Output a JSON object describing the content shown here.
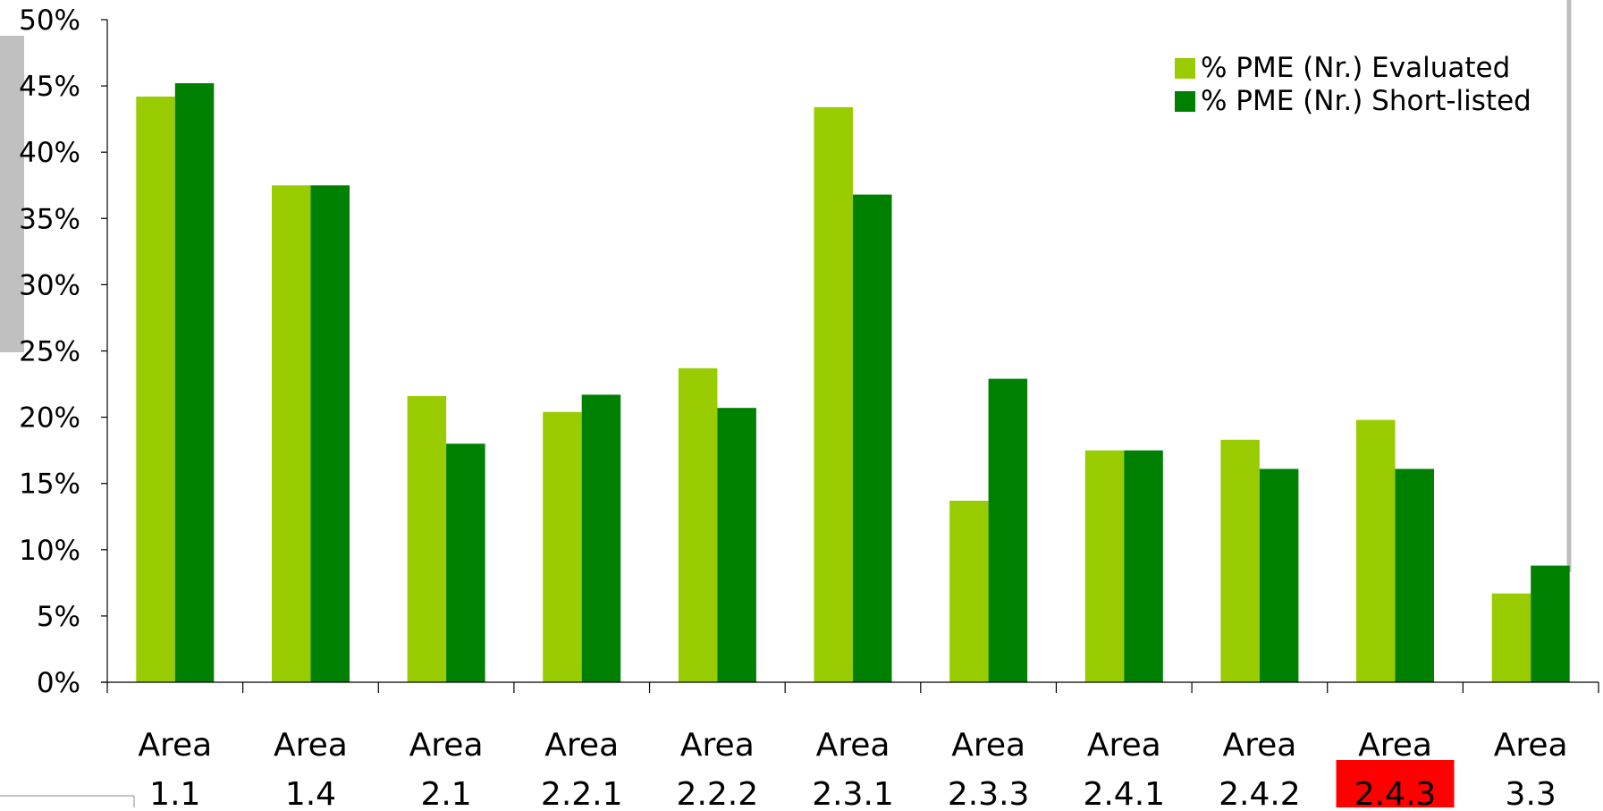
{
  "chart_data": {
    "type": "bar",
    "categories": [
      [
        "Area",
        "1.1"
      ],
      [
        "Area",
        "1.4"
      ],
      [
        "Area",
        "2.1"
      ],
      [
        "Area",
        "2.2.1"
      ],
      [
        "Area",
        "2.2.2"
      ],
      [
        "Area",
        "2.3.1"
      ],
      [
        "Area",
        "2.3.3"
      ],
      [
        "Area",
        "2.4.1"
      ],
      [
        "Area",
        "2.4.2"
      ],
      [
        "Area",
        "2.4.3"
      ],
      [
        "Area",
        "3.3"
      ]
    ],
    "highlighted_category": "2.4.3",
    "highlight_color": "#ff0000",
    "series": [
      {
        "name": "% PME (Nr.) Evaluated",
        "color": "#99cc00",
        "values": [
          44.2,
          37.5,
          21.6,
          20.4,
          23.7,
          43.4,
          13.7,
          17.5,
          18.3,
          19.8,
          6.7
        ]
      },
      {
        "name": "% PME (Nr.) Short-listed",
        "color": "#008000",
        "values": [
          45.2,
          37.5,
          18.0,
          21.7,
          20.7,
          36.8,
          22.9,
          17.5,
          16.1,
          16.1,
          8.8
        ]
      }
    ],
    "ylim": [
      0,
      50
    ],
    "yticks": [
      "0%",
      "5%",
      "10%",
      "15%",
      "20%",
      "25%",
      "30%",
      "35%",
      "40%",
      "45%",
      "50%"
    ],
    "legend_position": "top-right",
    "grid": false
  }
}
